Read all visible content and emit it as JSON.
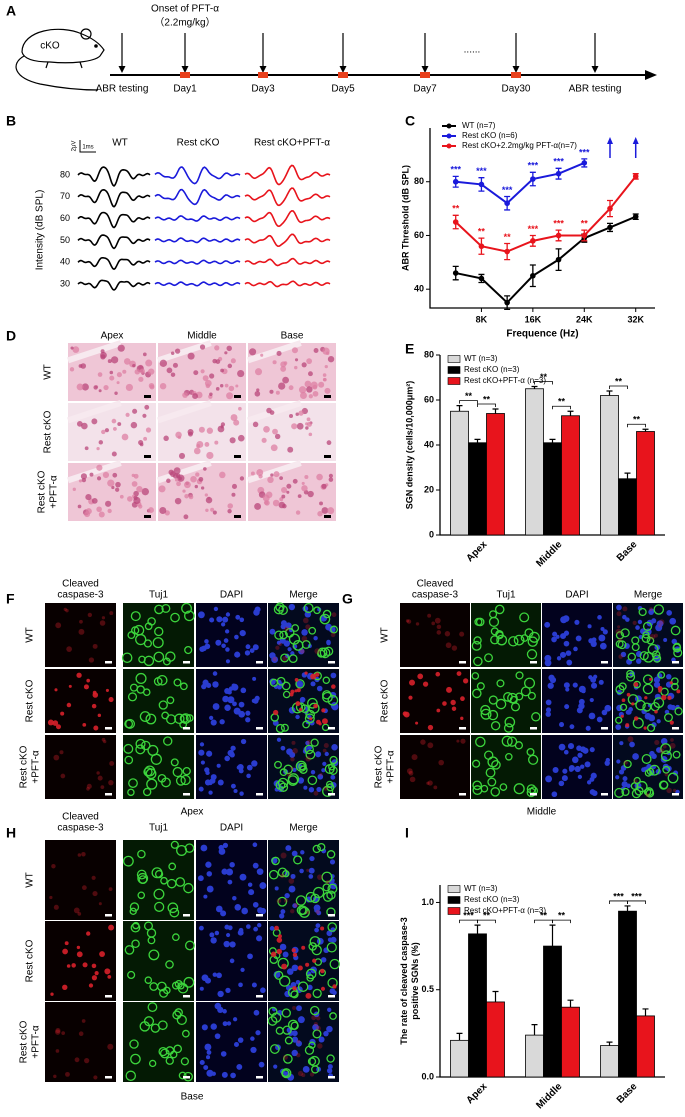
{
  "panel_labels": [
    "A",
    "B",
    "C",
    "D",
    "E",
    "F",
    "G",
    "H",
    "I"
  ],
  "timeline": {
    "mouse_label": "cKO",
    "onset": "Onset of PFT-α",
    "dose": "（2.2mg/kg）",
    "ellipsis": "......",
    "events": [
      "ABR testing",
      "Day1",
      "Day3",
      "Day5",
      "Day7",
      "Day30",
      "ABR testing"
    ]
  },
  "abr_waves": {
    "groups": [
      "WT",
      "Rest cKO",
      "Rest cKO+PFT-α"
    ],
    "intensities": [
      80,
      70,
      60,
      50,
      40,
      30
    ],
    "axis_label": "Intensity (dB SPL)",
    "scale_voltage": "2μV",
    "scale_time": "1ms"
  },
  "histology": {
    "columns": [
      "Apex",
      "Middle",
      "Base"
    ],
    "rows": [
      [
        "WT"
      ],
      [
        "Rest cKO"
      ],
      [
        "Rest cKO",
        "+PFT-α"
      ]
    ]
  },
  "immunofluorescence": [
    {
      "columns": [
        [
          "Cleaved",
          "caspase-3"
        ],
        [
          "Tuj1"
        ],
        [
          "DAPI"
        ],
        [
          "Merge"
        ]
      ],
      "rows": [
        [
          "WT"
        ],
        [
          "Rest cKO"
        ],
        [
          "Rest cKO",
          "+PFT-α"
        ]
      ],
      "caption": "Apex"
    },
    {
      "columns": [
        [
          "Cleaved",
          "caspase-3"
        ],
        [
          "Tuj1"
        ],
        [
          "DAPI"
        ],
        [
          "Merge"
        ]
      ],
      "rows": [
        [
          "WT"
        ],
        [
          "Rest cKO"
        ],
        [
          "Rest cKO",
          "+PFT-α"
        ]
      ],
      "caption": "Middle"
    },
    {
      "columns": [
        [
          "Cleaved",
          "caspase-3"
        ],
        [
          "Tuj1"
        ],
        [
          "DAPI"
        ],
        [
          "Merge"
        ]
      ],
      "rows": [
        [
          "WT"
        ],
        [
          "Rest cKO"
        ],
        [
          "Rest cKO",
          "+PFT-α"
        ]
      ],
      "caption": "Base"
    }
  ],
  "chart_data": [
    {
      "type": "line",
      "xlabel": "Frequence (Hz)",
      "ylabel": "ABR Threshold (dB SPL)",
      "x": [
        4,
        8,
        12,
        16,
        20,
        24,
        28,
        32
      ],
      "xlim": [
        0,
        35
      ],
      "xticks": [
        {
          "value": 8,
          "label": "8K"
        },
        {
          "value": 16,
          "label": "16K"
        },
        {
          "value": 24,
          "label": "24K"
        },
        {
          "value": 32,
          "label": "32K"
        }
      ],
      "ylim": [
        33,
        100
      ],
      "yticks": [
        40,
        60,
        80
      ],
      "legend": "upper left",
      "series": [
        {
          "name": "WT (n=7)",
          "color": "#000000",
          "values": [
            46,
            44,
            35,
            45,
            51,
            59,
            63,
            67
          ],
          "errors": [
            2.5,
            1.5,
            2.5,
            4,
            4,
            1.5,
            1.5,
            1
          ]
        },
        {
          "name": "Rest cKO (n=6)",
          "color": "#1a1adb",
          "values": [
            80,
            79,
            72,
            81,
            83,
            87,
            null,
            null
          ],
          "errors": [
            2,
            2.5,
            2.5,
            2.5,
            2,
            1.5,
            null,
            null
          ],
          "significance": [
            "***",
            "***",
            "***",
            "***",
            "***",
            "***",
            null,
            null
          ]
        },
        {
          "name": "Rest cKO+2.2mg/kg PFT-α(n=7)",
          "color": "#e8141c",
          "values": [
            65,
            56,
            54,
            58,
            60,
            60,
            70,
            82
          ],
          "errors": [
            2.5,
            3,
            3,
            2,
            2,
            2,
            3,
            1
          ],
          "significance": [
            "**",
            "**",
            "**",
            "***",
            "***",
            "**",
            null,
            null
          ]
        }
      ]
    },
    {
      "type": "bar",
      "ylabel": "SGN density (cells/10,000μm²)",
      "categories": [
        "Apex",
        "Middle",
        "Base"
      ],
      "ylim": [
        0,
        80
      ],
      "yticks": [
        0,
        20,
        40,
        60,
        80
      ],
      "legend": "upper left",
      "series": [
        {
          "name": "WT (n=3)",
          "color": "#d9d9d9",
          "values": [
            55,
            65,
            62
          ],
          "errors": [
            2.5,
            1,
            2
          ]
        },
        {
          "name": "Rest cKO (n=3)",
          "color": "#000000",
          "values": [
            41,
            41,
            25
          ],
          "errors": [
            1.5,
            1.5,
            2.5
          ]
        },
        {
          "name": "Rest cKO+PFT-α (n=3)",
          "color": "#e8141c",
          "values": [
            54,
            53,
            46
          ],
          "errors": [
            2,
            2,
            1
          ]
        }
      ],
      "significance": [
        [
          "**",
          "**"
        ],
        [
          "**",
          "**"
        ],
        [
          "**",
          "**"
        ]
      ]
    },
    {
      "type": "bar",
      "ylabel": [
        "The rate of cleaved caspase-3",
        "positive SGNs (%)"
      ],
      "categories": [
        "Apex",
        "Middle",
        "Base"
      ],
      "ylim": [
        0,
        1.1
      ],
      "yticks": [
        {
          "value": 0,
          "label": "0.0"
        },
        0.5,
        {
          "value": 1,
          "label": "1.0"
        }
      ],
      "legend": "upper left",
      "series": [
        {
          "name": "WT (n=3)",
          "color": "#d9d9d9",
          "values": [
            0.21,
            0.24,
            0.18
          ],
          "errors": [
            0.04,
            0.06,
            0.02
          ]
        },
        {
          "name": "Rest cKO (n=3)",
          "color": "#000000",
          "values": [
            0.82,
            0.75,
            0.95
          ],
          "errors": [
            0.05,
            0.12,
            0.03
          ]
        },
        {
          "name": "Rest cKO+PFT-α (n=3)",
          "color": "#e8141c",
          "values": [
            0.43,
            0.4,
            0.35
          ],
          "errors": [
            0.06,
            0.04,
            0.04
          ]
        }
      ],
      "significance": [
        [
          "***",
          "**"
        ],
        [
          "**",
          "**"
        ],
        [
          "***",
          "***"
        ]
      ]
    }
  ]
}
